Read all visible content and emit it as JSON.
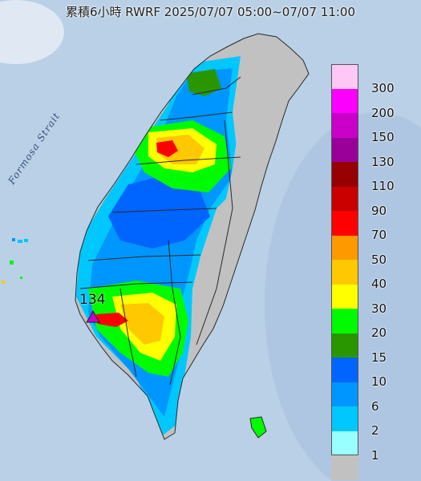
{
  "title": "累積6小時 RWRF 2025/07/07 05:00~07/07 11:00",
  "strait_label": "Formosa Strait",
  "max_marker": {
    "value": "134",
    "color": "#c800c8"
  },
  "legend": [
    {
      "label": "300",
      "color": "#fdc8f6"
    },
    {
      "label": "200",
      "color": "#fb00fc"
    },
    {
      "label": "150",
      "color": "#c800c8"
    },
    {
      "label": "130",
      "color": "#99009a"
    },
    {
      "label": "110",
      "color": "#960000"
    },
    {
      "label": "90",
      "color": "#c80000"
    },
    {
      "label": "70",
      "color": "#fe0000"
    },
    {
      "label": "50",
      "color": "#fe9900"
    },
    {
      "label": "40",
      "color": "#ffc800"
    },
    {
      "label": "30",
      "color": "#ffff00"
    },
    {
      "label": "20",
      "color": "#00fa00"
    },
    {
      "label": "15",
      "color": "#299600"
    },
    {
      "label": "10",
      "color": "#0064ff"
    },
    {
      "label": "6",
      "color": "#0096ff"
    },
    {
      "label": "2",
      "color": "#00c8ff"
    },
    {
      "label": "1",
      "color": "#99ffff"
    },
    {
      "label": "",
      "color": "#c1c1c1"
    }
  ],
  "colors": {
    "sea": "#b9d0e6",
    "land": "#c1c1c1",
    "border": "#2a2a2a"
  }
}
